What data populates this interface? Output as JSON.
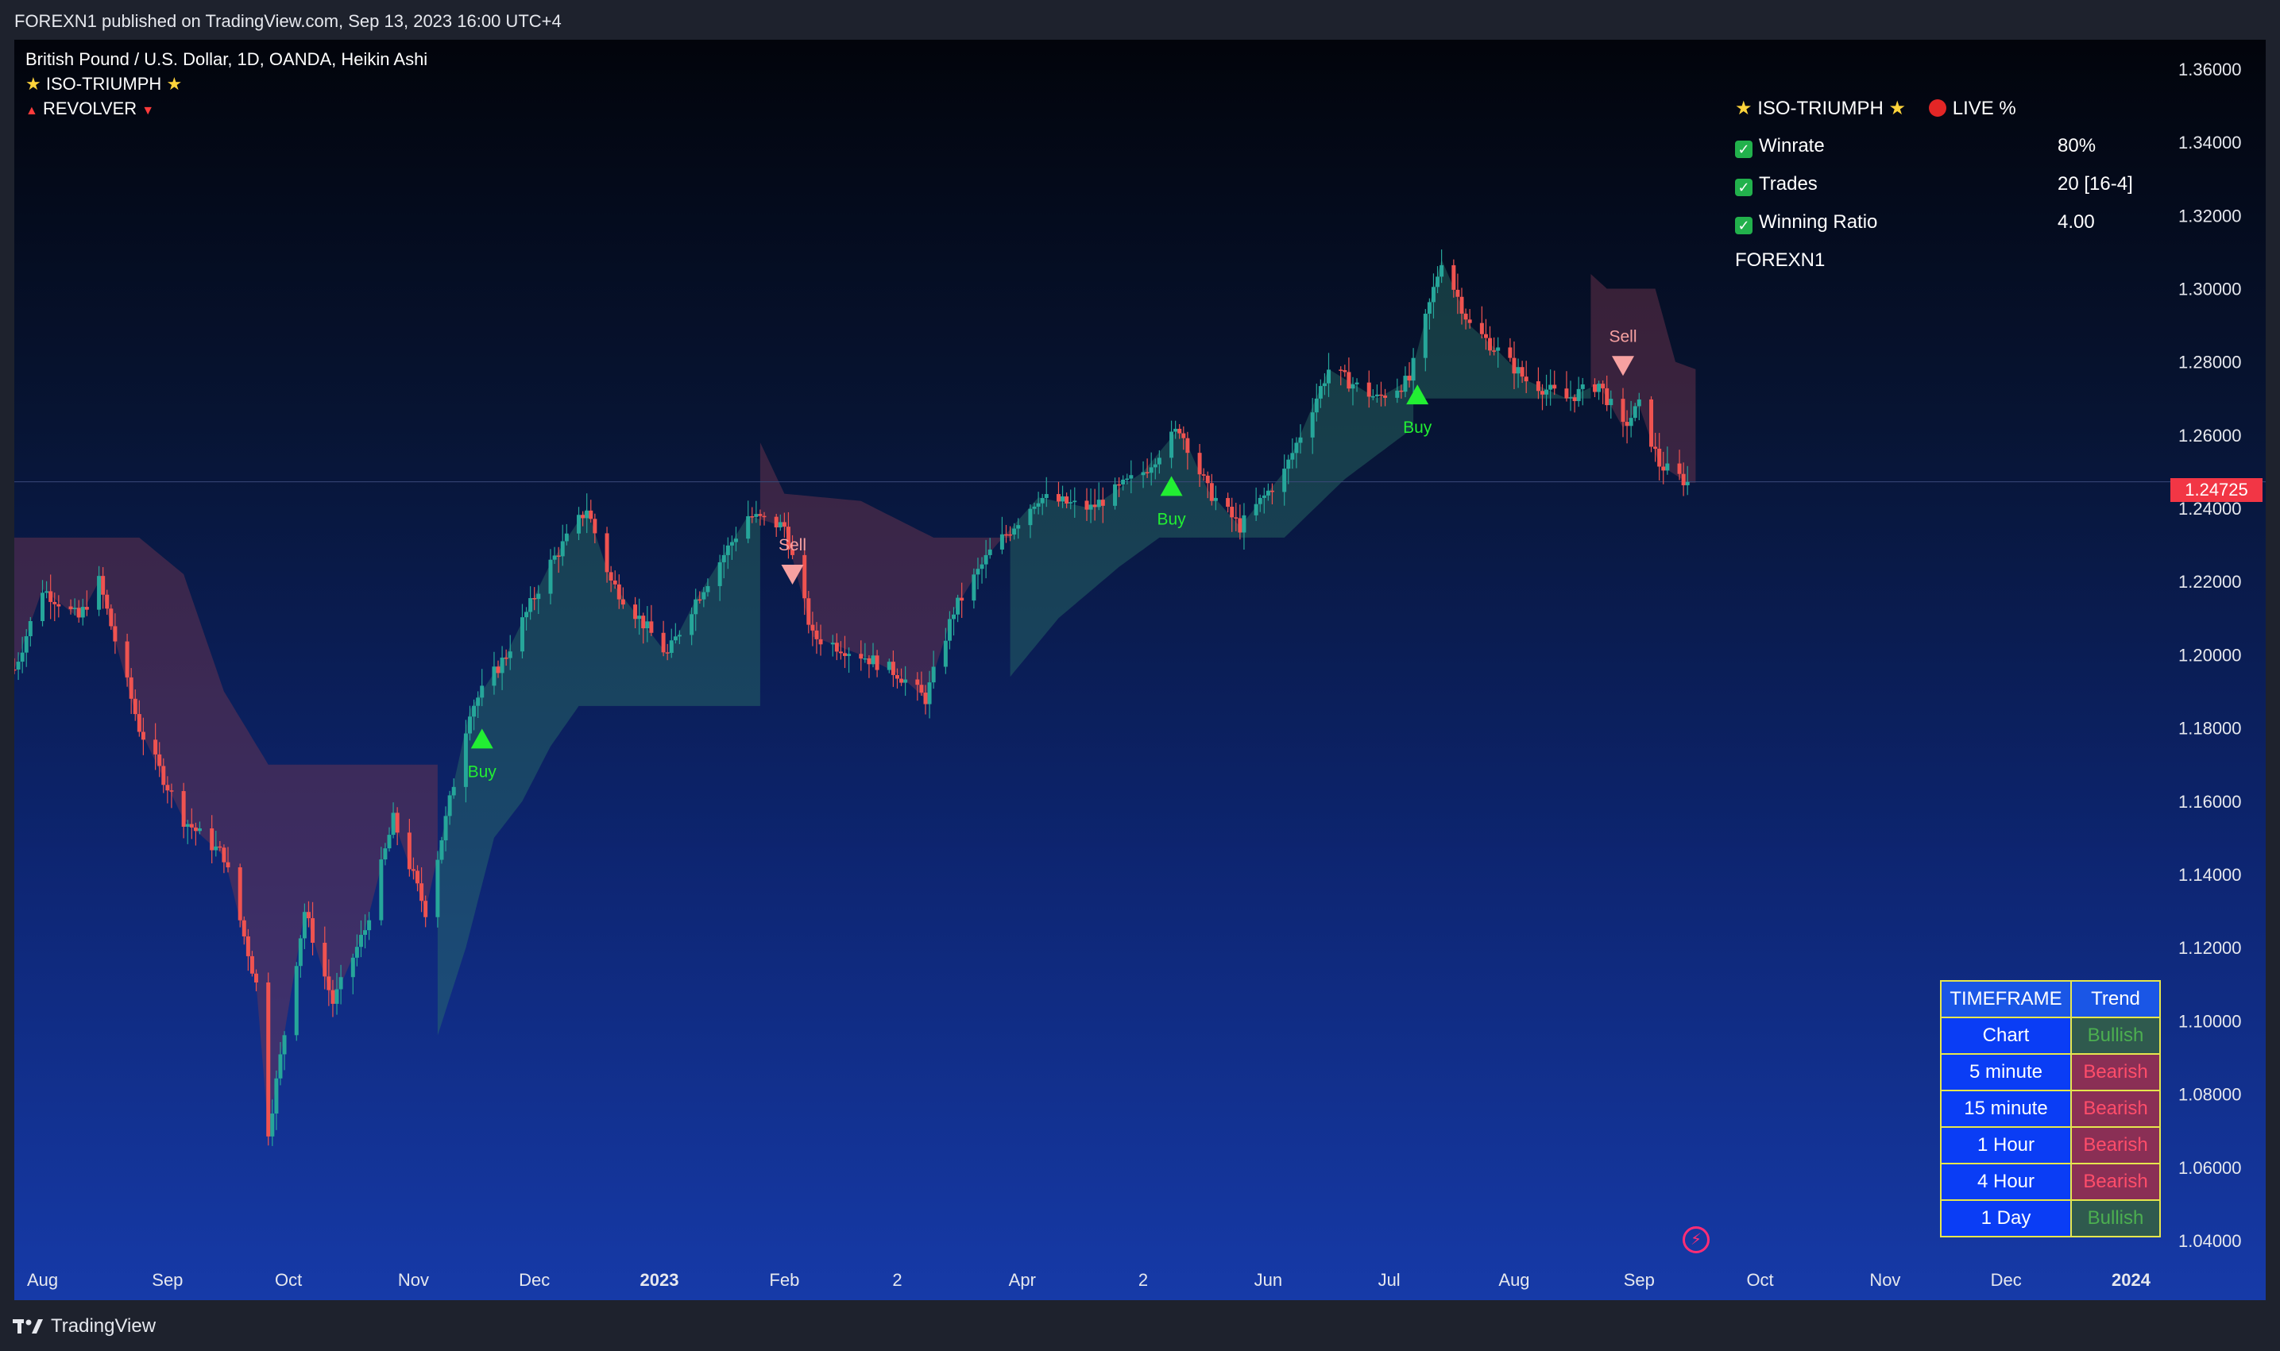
{
  "header": {
    "published": "FOREXN1 published on TradingView.com, Sep 13, 2023 16:00 UTC+4"
  },
  "legend": {
    "symbol": "British Pound / U.S. Dollar, 1D, OANDA, Heikin Ashi",
    "indicator1": "ISO-TRIUMPH",
    "indicator2": "REVOLVER"
  },
  "stats": {
    "title": "ISO-TRIUMPH",
    "live": "LIVE %",
    "rows": [
      {
        "label": "Winrate",
        "value": "80%"
      },
      {
        "label": "Trades",
        "value": "20 [16-4]"
      },
      {
        "label": "Winning Ratio",
        "value": "4.00"
      }
    ],
    "author": "FOREXN1"
  },
  "trend_table": {
    "headers": [
      "TIMEFRAME",
      "Trend"
    ],
    "rows": [
      {
        "timeframe": "Chart",
        "trend": "Bullish"
      },
      {
        "timeframe": "5 minute",
        "trend": "Bearish"
      },
      {
        "timeframe": "15 minute",
        "trend": "Bearish"
      },
      {
        "timeframe": "1 Hour",
        "trend": "Bearish"
      },
      {
        "timeframe": "4 Hour",
        "trend": "Bearish"
      },
      {
        "timeframe": "1 Day",
        "trend": "Bullish"
      }
    ]
  },
  "colors": {
    "bull_candle": "#26a69a",
    "bear_candle": "#ef5350",
    "bull_cloud": "rgba(45,120,105,0.42)",
    "bear_cloud": "rgba(120,55,80,0.45)",
    "buy_marker": "#22ee33",
    "sell_marker": "#f7a1a1",
    "bullish_text": "#4caf50",
    "bearish_text": "#ff4d6a",
    "bullish_bg": "#2f5a4e",
    "bearish_bg": "#8a2f55"
  },
  "current_price": "1.24725",
  "footer": {
    "brand": "TradingView"
  },
  "chart_data": {
    "type": "candlestick",
    "yaxis": {
      "min": 1.035,
      "max": 1.368,
      "ticks": [
        1.04,
        1.06,
        1.08,
        1.1,
        1.12,
        1.14,
        1.16,
        1.18,
        1.2,
        1.22,
        1.24,
        1.26,
        1.28,
        1.3,
        1.32,
        1.34,
        1.36
      ],
      "tick_labels": [
        "1.04000",
        "1.06000",
        "1.08000",
        "1.10000",
        "1.12000",
        "1.14000",
        "1.16000",
        "1.18000",
        "1.20000",
        "1.22000",
        "1.24000",
        "1.26000",
        "1.28000",
        "1.30000",
        "1.32000",
        "1.34000",
        "1.36000"
      ]
    },
    "xaxis": {
      "start": "2022-07-25",
      "end": "2024-01-08",
      "labels": [
        {
          "date": "2022-08-01",
          "text": "Aug"
        },
        {
          "date": "2022-09-01",
          "text": "Sep"
        },
        {
          "date": "2022-10-01",
          "text": "Oct"
        },
        {
          "date": "2022-11-01",
          "text": "Nov"
        },
        {
          "date": "2022-12-01",
          "text": "Dec"
        },
        {
          "date": "2023-01-01",
          "text": "2023",
          "bold": true
        },
        {
          "date": "2023-02-01",
          "text": "Feb"
        },
        {
          "date": "2023-03-01",
          "text": "2"
        },
        {
          "date": "2023-04-01",
          "text": "Apr"
        },
        {
          "date": "2023-05-01",
          "text": "2"
        },
        {
          "date": "2023-06-01",
          "text": "Jun"
        },
        {
          "date": "2023-07-01",
          "text": "Jul"
        },
        {
          "date": "2023-08-01",
          "text": "Aug"
        },
        {
          "date": "2023-09-01",
          "text": "Sep"
        },
        {
          "date": "2023-10-01",
          "text": "Oct"
        },
        {
          "date": "2023-11-01",
          "text": "Nov"
        },
        {
          "date": "2023-12-01",
          "text": "Dec"
        },
        {
          "date": "2024-01-01",
          "text": "2024",
          "bold": true
        }
      ]
    },
    "price_path": [
      {
        "date": "2022-07-25",
        "price": 1.196
      },
      {
        "date": "2022-08-01",
        "price": 1.218
      },
      {
        "date": "2022-08-10",
        "price": 1.21
      },
      {
        "date": "2022-08-15",
        "price": 1.22
      },
      {
        "date": "2022-08-25",
        "price": 1.18
      },
      {
        "date": "2022-09-05",
        "price": 1.155
      },
      {
        "date": "2022-09-15",
        "price": 1.145
      },
      {
        "date": "2022-09-23",
        "price": 1.11
      },
      {
        "date": "2022-09-26",
        "price": 1.07
      },
      {
        "date": "2022-10-05",
        "price": 1.13
      },
      {
        "date": "2022-10-12",
        "price": 1.105
      },
      {
        "date": "2022-10-20",
        "price": 1.125
      },
      {
        "date": "2022-10-27",
        "price": 1.155
      },
      {
        "date": "2022-11-04",
        "price": 1.13
      },
      {
        "date": "2022-11-15",
        "price": 1.185
      },
      {
        "date": "2022-11-24",
        "price": 1.2
      },
      {
        "date": "2022-12-05",
        "price": 1.225
      },
      {
        "date": "2022-12-14",
        "price": 1.24
      },
      {
        "date": "2022-12-20",
        "price": 1.22
      },
      {
        "date": "2023-01-03",
        "price": 1.2
      },
      {
        "date": "2023-01-10",
        "price": 1.215
      },
      {
        "date": "2023-01-23",
        "price": 1.238
      },
      {
        "date": "2023-02-01",
        "price": 1.235
      },
      {
        "date": "2023-02-08",
        "price": 1.205
      },
      {
        "date": "2023-02-20",
        "price": 1.2
      },
      {
        "date": "2023-03-01",
        "price": 1.195
      },
      {
        "date": "2023-03-08",
        "price": 1.188
      },
      {
        "date": "2023-03-15",
        "price": 1.212
      },
      {
        "date": "2023-03-24",
        "price": 1.228
      },
      {
        "date": "2023-04-05",
        "price": 1.243
      },
      {
        "date": "2023-04-18",
        "price": 1.24
      },
      {
        "date": "2023-05-01",
        "price": 1.25
      },
      {
        "date": "2023-05-10",
        "price": 1.262
      },
      {
        "date": "2023-05-17",
        "price": 1.245
      },
      {
        "date": "2023-05-25",
        "price": 1.235
      },
      {
        "date": "2023-06-05",
        "price": 1.25
      },
      {
        "date": "2023-06-16",
        "price": 1.278
      },
      {
        "date": "2023-06-28",
        "price": 1.27
      },
      {
        "date": "2023-07-06",
        "price": 1.275
      },
      {
        "date": "2023-07-14",
        "price": 1.308
      },
      {
        "date": "2023-07-21",
        "price": 1.29
      },
      {
        "date": "2023-07-28",
        "price": 1.283
      },
      {
        "date": "2023-08-04",
        "price": 1.275
      },
      {
        "date": "2023-08-14",
        "price": 1.27
      },
      {
        "date": "2023-08-22",
        "price": 1.274
      },
      {
        "date": "2023-08-28",
        "price": 1.262
      },
      {
        "date": "2023-09-01",
        "price": 1.268
      },
      {
        "date": "2023-09-06",
        "price": 1.252
      },
      {
        "date": "2023-09-13",
        "price": 1.247
      }
    ],
    "cloud": [
      {
        "start": "2022-07-25",
        "end": "2022-11-07",
        "direction": "bear",
        "upper": [
          {
            "date": "2022-07-25",
            "price": 1.232
          },
          {
            "date": "2022-08-25",
            "price": 1.232
          },
          {
            "date": "2022-09-05",
            "price": 1.222
          },
          {
            "date": "2022-09-15",
            "price": 1.19
          },
          {
            "date": "2022-09-26",
            "price": 1.17
          },
          {
            "date": "2022-11-07",
            "price": 1.17
          }
        ]
      },
      {
        "start": "2022-11-07",
        "end": "2023-01-26",
        "direction": "bull",
        "lower": [
          {
            "date": "2022-11-07",
            "price": 1.096
          },
          {
            "date": "2022-11-14",
            "price": 1.12
          },
          {
            "date": "2022-11-21",
            "price": 1.15
          },
          {
            "date": "2022-11-28",
            "price": 1.16
          },
          {
            "date": "2022-12-05",
            "price": 1.175
          },
          {
            "date": "2022-12-12",
            "price": 1.186
          },
          {
            "date": "2023-01-26",
            "price": 1.186
          }
        ]
      },
      {
        "start": "2023-01-26",
        "end": "2023-03-29",
        "direction": "bear",
        "upper": [
          {
            "date": "2023-01-26",
            "price": 1.258
          },
          {
            "date": "2023-02-01",
            "price": 1.244
          },
          {
            "date": "2023-02-20",
            "price": 1.242
          },
          {
            "date": "2023-03-10",
            "price": 1.232
          },
          {
            "date": "2023-03-29",
            "price": 1.232
          }
        ]
      },
      {
        "start": "2023-03-29",
        "end": "2023-07-07",
        "direction": "bull",
        "lower": [
          {
            "date": "2023-03-29",
            "price": 1.194
          },
          {
            "date": "2023-04-10",
            "price": 1.21
          },
          {
            "date": "2023-04-25",
            "price": 1.224
          },
          {
            "date": "2023-05-05",
            "price": 1.232
          },
          {
            "date": "2023-06-05",
            "price": 1.232
          },
          {
            "date": "2023-06-20",
            "price": 1.248
          },
          {
            "date": "2023-07-07",
            "price": 1.262
          }
        ]
      },
      {
        "start": "2023-07-07",
        "end": "2023-08-20",
        "direction": "bull",
        "lower": [
          {
            "date": "2023-07-07",
            "price": 1.27
          },
          {
            "date": "2023-08-20",
            "price": 1.27
          }
        ]
      },
      {
        "start": "2023-08-20",
        "end": "2023-09-15",
        "direction": "bear",
        "upper": [
          {
            "date": "2023-08-20",
            "price": 1.304
          },
          {
            "date": "2023-08-24",
            "price": 1.3
          },
          {
            "date": "2023-09-05",
            "price": 1.3
          },
          {
            "date": "2023-09-10",
            "price": 1.28
          },
          {
            "date": "2023-09-15",
            "price": 1.278
          }
        ]
      }
    ],
    "signals": [
      {
        "type": "buy",
        "date": "2022-11-18",
        "price": 1.177,
        "label": "Buy"
      },
      {
        "type": "sell",
        "date": "2023-02-03",
        "price": 1.222,
        "label": "Sell"
      },
      {
        "type": "buy",
        "date": "2023-05-08",
        "price": 1.246,
        "label": "Buy"
      },
      {
        "type": "buy",
        "date": "2023-07-08",
        "price": 1.271,
        "label": "Buy"
      },
      {
        "type": "sell",
        "date": "2023-08-28",
        "price": 1.279,
        "label": "Sell"
      }
    ],
    "last_price": 1.24725
  }
}
